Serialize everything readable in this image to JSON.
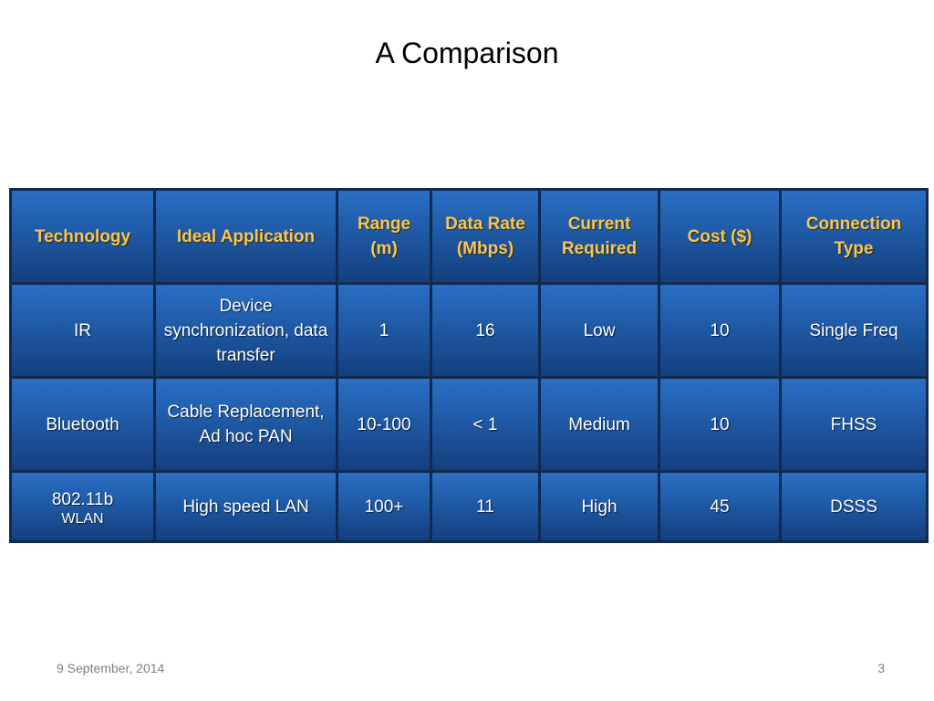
{
  "slide": {
    "title": "A Comparison",
    "footer_date": "9 September, 2014",
    "page_number": "3"
  },
  "table": {
    "headers": [
      "Technology",
      "Ideal Application",
      "Range (m)",
      "Data Rate (Mbps)",
      "Current Required",
      "Cost ($)",
      "Connection Type"
    ],
    "rows": [
      {
        "technology": "IR",
        "technology_sub": "",
        "application": "Device synchronization, data transfer",
        "range": "1",
        "data_rate": "16",
        "current": "Low",
        "cost": "10",
        "connection": "Single Freq"
      },
      {
        "technology": "Bluetooth",
        "technology_sub": "",
        "application": "Cable Replacement, Ad hoc PAN",
        "range": "10-100",
        "data_rate": "< 1",
        "current": "Medium",
        "cost": "10",
        "connection": "FHSS"
      },
      {
        "technology": "802.11b",
        "technology_sub": "WLAN",
        "application": "High speed LAN",
        "range": "100+",
        "data_rate": "11",
        "current": "High",
        "cost": "45",
        "connection": "DSSS"
      }
    ]
  },
  "colors": {
    "header_text": "#f2c75c",
    "cell_blue": "#1f5aa6",
    "border_dark": "#102a52"
  }
}
